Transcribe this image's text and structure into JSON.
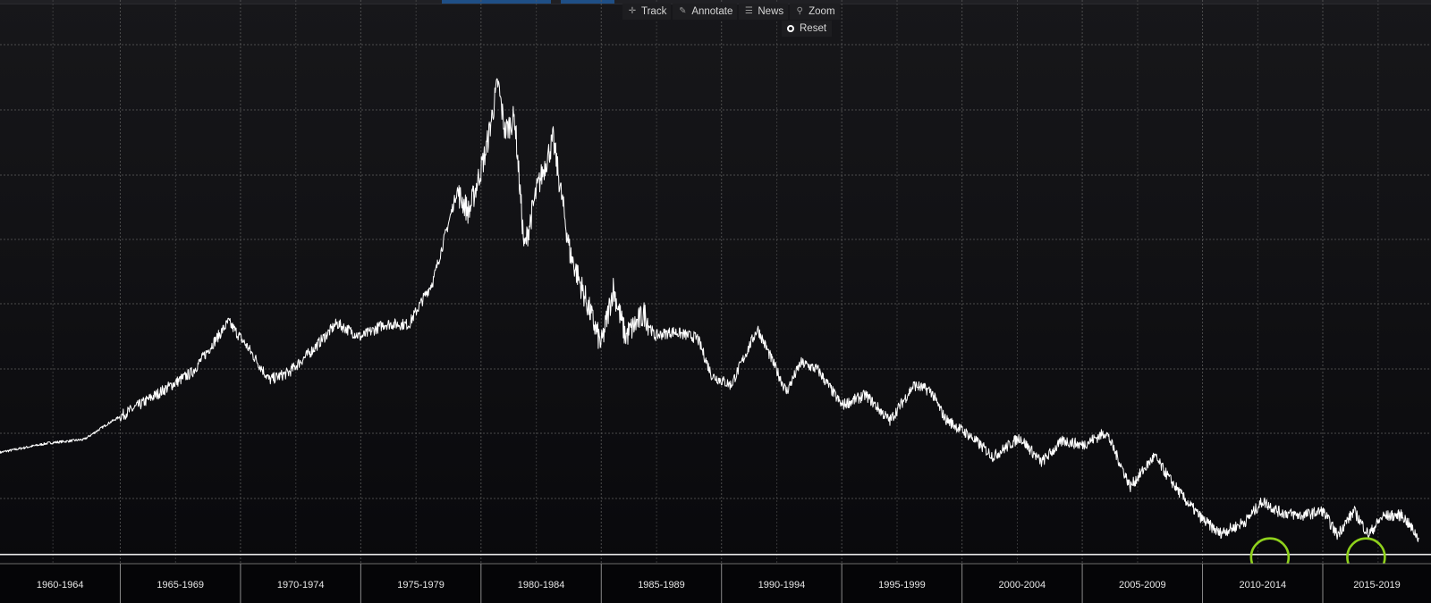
{
  "toolbar": {
    "buttons": [
      {
        "label": "Track",
        "icon": "crosshair-icon"
      },
      {
        "label": "Annotate",
        "icon": "pencil-icon"
      },
      {
        "label": "News",
        "icon": "news-icon"
      },
      {
        "label": "Zoom",
        "icon": "magnifier-icon"
      }
    ],
    "reset_label": "Reset"
  },
  "colors": {
    "background": "#0d0d10",
    "line": "#ffffff",
    "grid": "#5a5a5a",
    "highlight": "#8fd11c",
    "tab_accent": "#1f4f86"
  },
  "chart_data": {
    "type": "line",
    "title": "",
    "xlabel": "",
    "ylabel": "",
    "x_range": [
      1960,
      2019.5
    ],
    "y_range": [
      0,
      100
    ],
    "y_ticks_shown": false,
    "grid": true,
    "categories": [
      "1960-1964",
      "1965-1969",
      "1970-1974",
      "1975-1979",
      "1980-1984",
      "1985-1989",
      "1990-1994",
      "1995-1999",
      "2000-2004",
      "2005-2009",
      "2010-2014",
      "2015-2019"
    ],
    "series": [
      {
        "name": "",
        "x": [
          1960.0,
          1962.0,
          1963.5,
          1964.5,
          1965.5,
          1967.0,
          1968.0,
          1969.5,
          1970.3,
          1971.2,
          1972.0,
          1973.0,
          1974.0,
          1975.0,
          1976.0,
          1977.0,
          1978.0,
          1979.0,
          1979.5,
          1980.2,
          1980.7,
          1981.0,
          1981.4,
          1981.8,
          1982.3,
          1983.0,
          1983.7,
          1984.3,
          1985.0,
          1985.5,
          1986.0,
          1986.8,
          1987.2,
          1988.0,
          1989.0,
          1989.6,
          1990.4,
          1991.5,
          1992.7,
          1993.3,
          1994.0,
          1995.0,
          1996.0,
          1997.0,
          1998.0,
          1998.7,
          1999.3,
          2000.3,
          2001.3,
          2002.4,
          2003.3,
          2004.2,
          2005.0,
          2006.0,
          2007.0,
          2008.0,
          2008.6,
          2009.2,
          2010.0,
          2010.7,
          2011.3,
          2011.8,
          2012.5,
          2013.2,
          2014.1,
          2015.0,
          2015.6,
          2016.3,
          2016.9,
          2017.5,
          2018.3,
          2019.0
        ],
        "values": [
          21.3,
          23.1,
          23.8,
          26.9,
          29.6,
          33.9,
          36.8,
          46.5,
          41.6,
          35.3,
          36.7,
          41.1,
          46.2,
          43.6,
          46.1,
          46.0,
          54.3,
          71.7,
          67.6,
          79.4,
          92.7,
          83.2,
          86.0,
          60.5,
          71.6,
          81.7,
          59.8,
          51.6,
          41.9,
          53.0,
          43.7,
          48.1,
          43.8,
          44.6,
          43.4,
          36.1,
          34.3,
          45.2,
          33.0,
          38.6,
          37.3,
          30.4,
          32.4,
          27.4,
          34.3,
          33.2,
          27.8,
          24.6,
          20.5,
          24.2,
          19.4,
          23.6,
          22.7,
          25.2,
          14.7,
          20.6,
          16.4,
          12.6,
          8.4,
          5.7,
          6.8,
          8.1,
          11.9,
          9.8,
          9.1,
          10.0,
          5.4,
          10.0,
          5.4,
          9.0,
          9.2,
          4.7
        ]
      }
    ],
    "reference_line_value": 1.6,
    "annotations": [
      {
        "type": "circle",
        "x": 2012.8,
        "y": 0,
        "color": "#8fd11c"
      },
      {
        "type": "circle",
        "x": 2016.8,
        "y": 0,
        "color": "#8fd11c"
      }
    ]
  }
}
